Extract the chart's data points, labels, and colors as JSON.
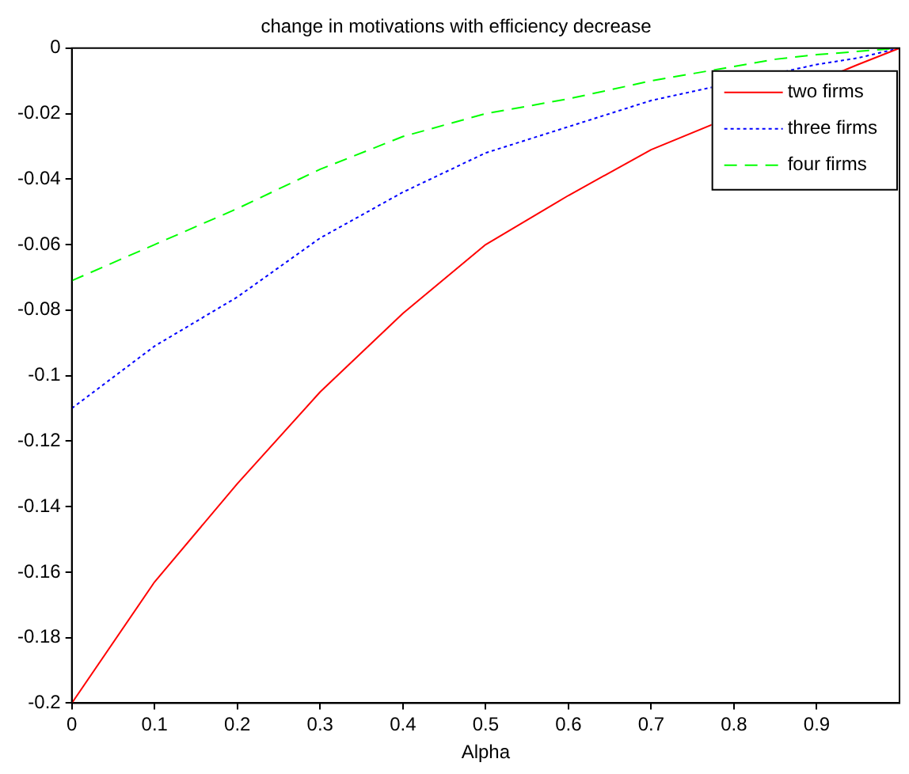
{
  "chart_data": {
    "type": "line",
    "title": "change in motivations with efficiency decrease",
    "xlabel": "Alpha",
    "xlim": [
      0,
      1
    ],
    "xticks": [
      0,
      0.1,
      0.2,
      0.3,
      0.4,
      0.5,
      0.6,
      0.7,
      0.8,
      0.9
    ],
    "ylim": [
      -0.2,
      0
    ],
    "yticks": [
      -0.2,
      -0.18,
      -0.16,
      -0.14,
      -0.12,
      -0.1,
      -0.08,
      -0.06,
      -0.04,
      -0.02,
      0
    ],
    "grid": false,
    "legend": "top right",
    "marker": "none",
    "series": [
      {
        "name": "two firms",
        "color": "#ff0000",
        "line_style": "solid",
        "x": [
          0,
          0.1,
          0.2,
          0.3,
          0.4,
          0.5,
          0.6,
          0.7,
          0.95,
          1
        ],
        "values": [
          -0.2,
          -0.163,
          -0.133,
          -0.105,
          -0.081,
          -0.06,
          -0.045,
          -0.031,
          -0.005,
          0
        ]
      },
      {
        "name": "three firms",
        "color": "#0000ff",
        "line_style": "dotted",
        "x": [
          0,
          0.1,
          0.2,
          0.3,
          0.4,
          0.5,
          0.6,
          0.7,
          0.9,
          0.95,
          1
        ],
        "values": [
          -0.11,
          -0.091,
          -0.076,
          -0.058,
          -0.044,
          -0.032,
          -0.024,
          -0.016,
          -0.005,
          -0.003,
          0
        ]
      },
      {
        "name": "four firms",
        "color": "#00ff00",
        "line_style": "dashed",
        "x": [
          0,
          0.1,
          0.2,
          0.3,
          0.4,
          0.5,
          0.6,
          0.7,
          0.85,
          0.9,
          1
        ],
        "values": [
          -0.071,
          -0.06,
          -0.049,
          -0.037,
          -0.027,
          -0.02,
          -0.0155,
          -0.01,
          -0.0034,
          -0.002,
          0
        ]
      }
    ]
  }
}
